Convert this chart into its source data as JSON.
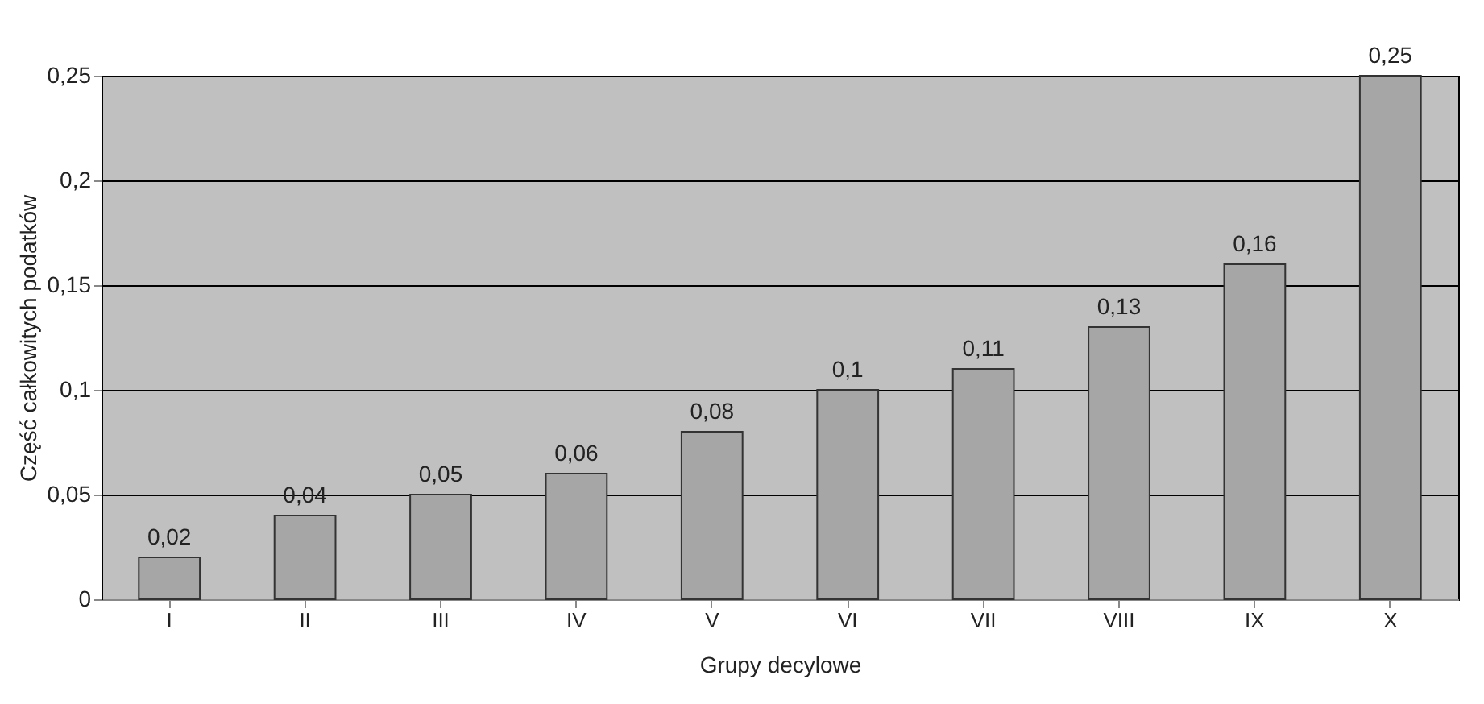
{
  "chart_data": {
    "type": "bar",
    "xlabel": "Grupy decylowe",
    "ylabel": "Część całkowitych podatków",
    "categories": [
      "I",
      "II",
      "III",
      "IV",
      "V",
      "VI",
      "VII",
      "VIII",
      "IX",
      "X"
    ],
    "values": [
      0.02,
      0.04,
      0.05,
      0.06,
      0.08,
      0.1,
      0.11,
      0.13,
      0.16,
      0.25
    ],
    "value_labels": [
      "0,02",
      "0,04",
      "0,05",
      "0,06",
      "0,08",
      "0,1",
      "0,11",
      "0,13",
      "0,16",
      "0,25"
    ],
    "color": "#a6a6a6",
    "ylim": [
      0,
      0.25
    ],
    "yticks": [
      {
        "value": 0,
        "label": "0"
      },
      {
        "value": 0.05,
        "label": "0,05"
      },
      {
        "value": 0.1,
        "label": "0,1"
      },
      {
        "value": 0.15,
        "label": "0,15"
      },
      {
        "value": 0.2,
        "label": "0,2"
      },
      {
        "value": 0.25,
        "label": "0,25"
      }
    ],
    "grid": "y"
  }
}
